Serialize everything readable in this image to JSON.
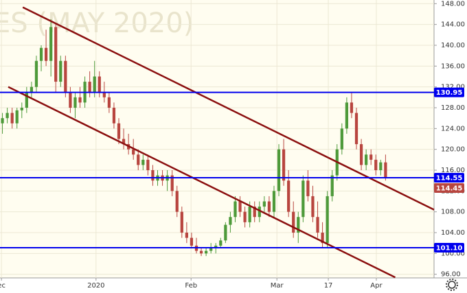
{
  "chart_data": {
    "type": "candlestick",
    "watermark": "ES (MAY 2020)",
    "x": [
      0,
      1,
      2,
      3,
      4,
      5,
      6,
      7,
      8,
      9,
      10,
      11,
      12,
      13,
      14,
      15,
      16,
      17,
      18,
      19,
      20,
      21,
      22,
      23,
      24,
      25,
      26,
      27,
      28,
      29,
      30,
      31,
      32,
      33,
      34,
      35,
      36,
      37,
      38,
      39,
      40,
      41,
      42,
      43,
      44,
      45,
      46,
      47,
      48,
      49,
      50,
      51,
      52,
      53,
      54,
      55,
      56,
      57,
      58,
      59,
      60,
      61,
      62,
      63,
      64,
      65,
      66,
      67,
      68,
      69,
      70,
      71,
      72,
      73,
      74,
      75,
      76,
      77,
      78,
      79
    ],
    "ohlc": [
      [
        125,
        127,
        123,
        126
      ],
      [
        126,
        128,
        125,
        127
      ],
      [
        127,
        128,
        124,
        125
      ],
      [
        125,
        128,
        124,
        127.5
      ],
      [
        127.5,
        129,
        126,
        128
      ],
      [
        128,
        132,
        127,
        131
      ],
      [
        131,
        133,
        130,
        132
      ],
      [
        132,
        138,
        131,
        137
      ],
      [
        137,
        140,
        135,
        139.5
      ],
      [
        139.5,
        143,
        136,
        137
      ],
      [
        137,
        145,
        134,
        143.5
      ],
      [
        143.5,
        144,
        131,
        133
      ],
      [
        133,
        138,
        132,
        137
      ],
      [
        137,
        138,
        130,
        131
      ],
      [
        131,
        132,
        127,
        128
      ],
      [
        128,
        131,
        126,
        130
      ],
      [
        130,
        132,
        128,
        129
      ],
      [
        129,
        134,
        128,
        133
      ],
      [
        133,
        135,
        130,
        131
      ],
      [
        131,
        137,
        130,
        134
      ],
      [
        134,
        135,
        130,
        131
      ],
      [
        131,
        133,
        129,
        130
      ],
      [
        130,
        131,
        127,
        128
      ],
      [
        128,
        129,
        124,
        125
      ],
      [
        125,
        126,
        121,
        122
      ],
      [
        122,
        124,
        120,
        121
      ],
      [
        121,
        123,
        119,
        120
      ],
      [
        120,
        122,
        118,
        119
      ],
      [
        119,
        120,
        116,
        117
      ],
      [
        117,
        119,
        116,
        118
      ],
      [
        118,
        119,
        115,
        116
      ],
      [
        116,
        117,
        113,
        114
      ],
      [
        114,
        116,
        113,
        115
      ],
      [
        115,
        116,
        113,
        114
      ],
      [
        114,
        116,
        112,
        115
      ],
      [
        115,
        116,
        111,
        112
      ],
      [
        112,
        113,
        107,
        108
      ],
      [
        108,
        109,
        103,
        104
      ],
      [
        104,
        106,
        102,
        103
      ],
      [
        103,
        104,
        101,
        101.5
      ],
      [
        101.5,
        103,
        100,
        100.5
      ],
      [
        100.5,
        101,
        99.5,
        100
      ],
      [
        100,
        101,
        99.5,
        100.5
      ],
      [
        100.5,
        102,
        100,
        101
      ],
      [
        101,
        102,
        100,
        101.5
      ],
      [
        101.5,
        103,
        101,
        102.5
      ],
      [
        102.5,
        106,
        102,
        105.5
      ],
      [
        105.5,
        108,
        104,
        107
      ],
      [
        107,
        111,
        106,
        110
      ],
      [
        110,
        111,
        107,
        108
      ],
      [
        108,
        109,
        105,
        106
      ],
      [
        106,
        110,
        105,
        109
      ],
      [
        109,
        110,
        106,
        107
      ],
      [
        107,
        110,
        106,
        109
      ],
      [
        109,
        111,
        108,
        110
      ],
      [
        110,
        111,
        107,
        108
      ],
      [
        108,
        113,
        107,
        112
      ],
      [
        112,
        121,
        111,
        120
      ],
      [
        120,
        122,
        113,
        114
      ],
      [
        114,
        116,
        107,
        108
      ],
      [
        108,
        110,
        103,
        104
      ],
      [
        104,
        108,
        102,
        107
      ],
      [
        107,
        115,
        106,
        114
      ],
      [
        114,
        116,
        110,
        111
      ],
      [
        111,
        113,
        106,
        107
      ],
      [
        107,
        110,
        103,
        104
      ],
      [
        104,
        106,
        101,
        102
      ],
      [
        102,
        112,
        101,
        111
      ],
      [
        111,
        116,
        110,
        115
      ],
      [
        115,
        121,
        114,
        120
      ],
      [
        120,
        125,
        119,
        124
      ],
      [
        124,
        130,
        123,
        129
      ],
      [
        129,
        131,
        126,
        127
      ],
      [
        127,
        128,
        120,
        121
      ],
      [
        121,
        122,
        116,
        117
      ],
      [
        117,
        120,
        116,
        119
      ],
      [
        119,
        120,
        117,
        118
      ],
      [
        118,
        119,
        115,
        116
      ],
      [
        116,
        118,
        115,
        117.5
      ],
      [
        117.5,
        119,
        114,
        114.45
      ]
    ],
    "up_color": "#4e9a3a",
    "down_color": "#b8453f",
    "xlim": [
      -0.5,
      89
    ],
    "xticks": [
      {
        "value": -0.2,
        "label": "ec"
      },
      {
        "value": 19.3,
        "label": "2020"
      },
      {
        "value": 38.9,
        "label": "Feb"
      },
      {
        "value": 56.6,
        "label": "Mar"
      },
      {
        "value": 67.2,
        "label": "17"
      },
      {
        "value": 77.1,
        "label": "Apr"
      }
    ],
    "ylim": [
      95.3,
      148.7
    ],
    "yticks": [
      {
        "value": 96,
        "label": "96.00"
      },
      {
        "value": 100,
        "label": "100.00"
      },
      {
        "value": 104,
        "label": "104.00"
      },
      {
        "value": 108,
        "label": "108.00"
      },
      {
        "value": 112,
        "label": "112.00"
      },
      {
        "value": 116,
        "label": "116.00"
      },
      {
        "value": 120,
        "label": "120.00"
      },
      {
        "value": 124,
        "label": "124.00"
      },
      {
        "value": 128,
        "label": "128.00"
      },
      {
        "value": 132,
        "label": "132.00"
      },
      {
        "value": 136,
        "label": "136.00"
      },
      {
        "value": 140,
        "label": "140.00"
      },
      {
        "value": 144,
        "label": "144.00"
      },
      {
        "value": 148,
        "label": "148.00"
      }
    ],
    "grid": true,
    "levels": {
      "values": [
        130.95,
        114.55,
        101.1
      ],
      "value_labels": [
        "130.95",
        "114.55",
        "101.10"
      ],
      "color": "#0000ee"
    },
    "trendlines": {
      "color": "#8b0f0f",
      "lines": [
        {
          "x": [
            4.2,
            89
          ],
          "y": [
            147.3,
            108.4
          ]
        },
        {
          "x": [
            1.2,
            81
          ],
          "y": [
            132.0,
            95.4
          ]
        }
      ]
    }
  }
}
